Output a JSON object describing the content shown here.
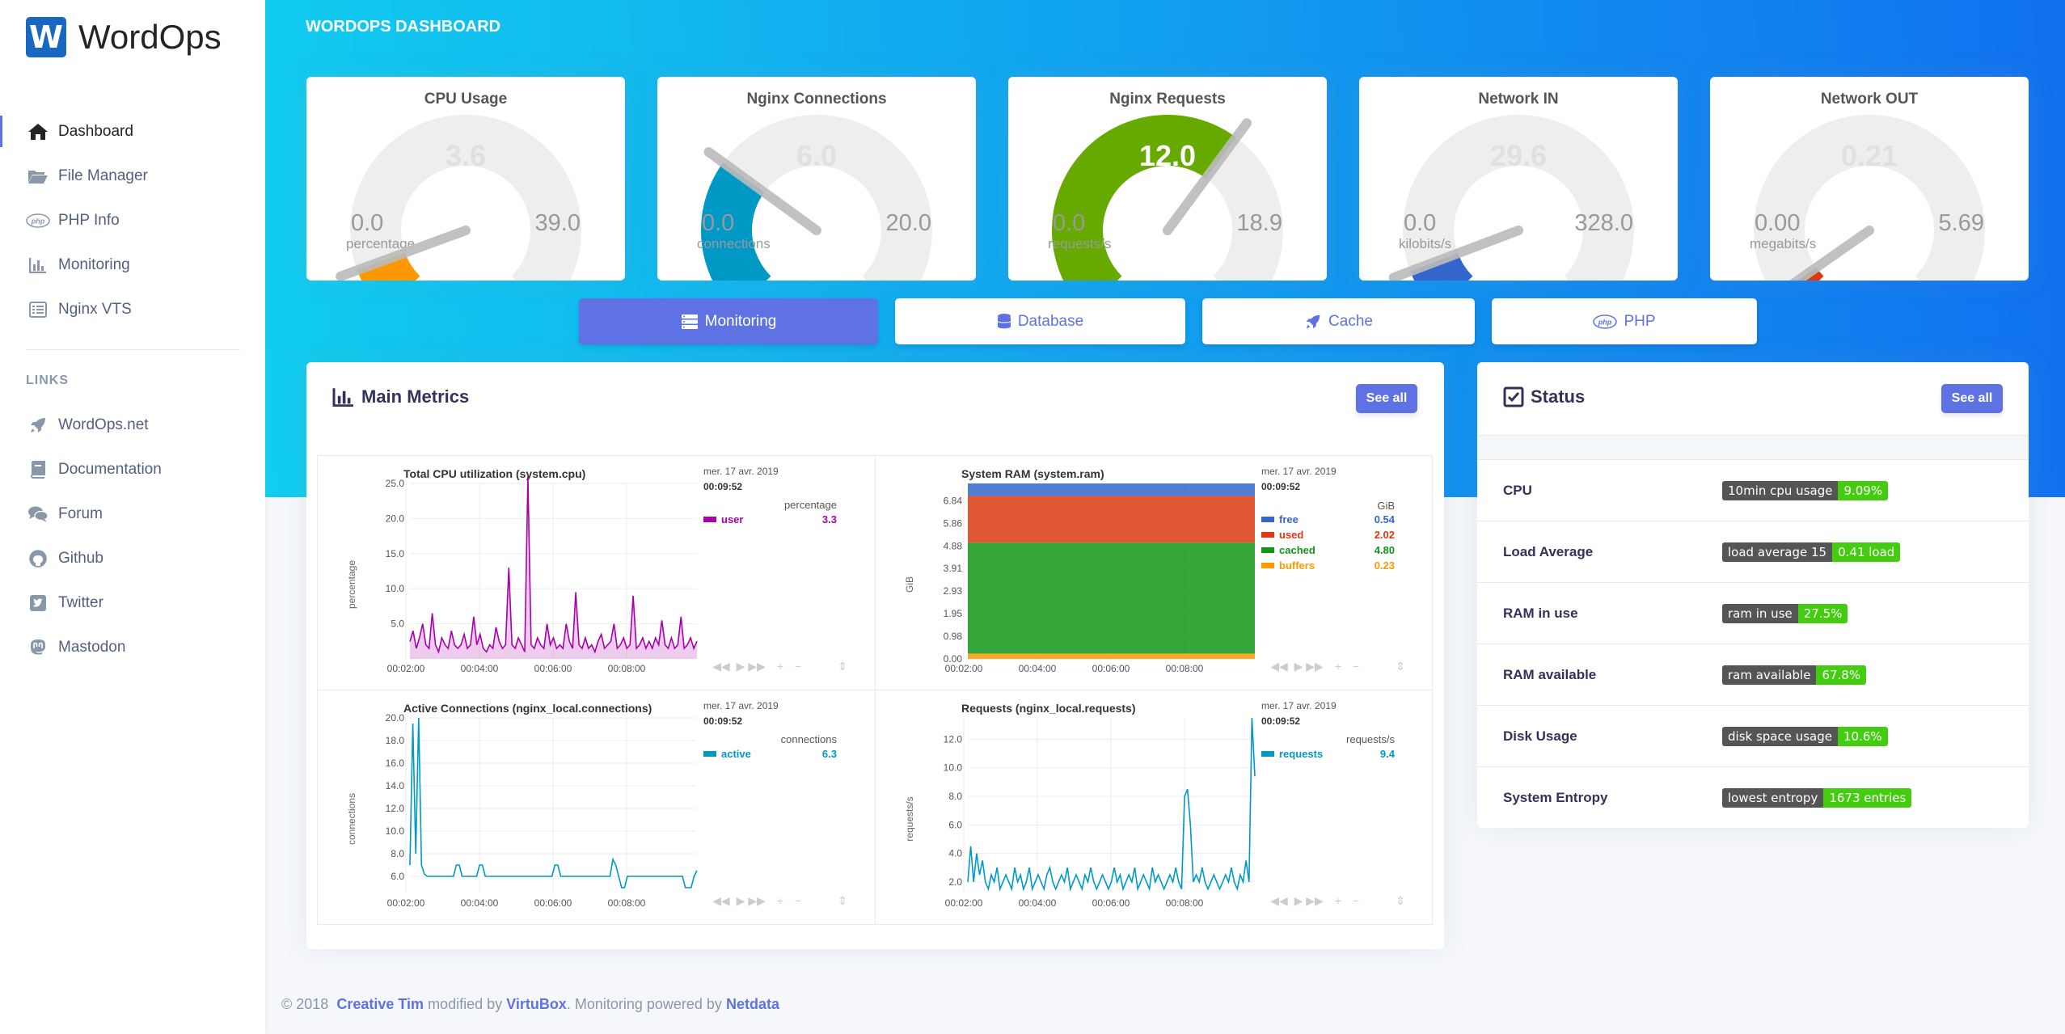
{
  "brand": {
    "logo_letter": "W",
    "name": "WordOps"
  },
  "sidebar": {
    "nav": [
      {
        "label": "Dashboard",
        "icon": "home-icon",
        "active": true
      },
      {
        "label": "File Manager",
        "icon": "folder-open-icon"
      },
      {
        "label": "PHP Info",
        "icon": "php-icon"
      },
      {
        "label": "Monitoring",
        "icon": "chart-bar-icon"
      },
      {
        "label": "Nginx VTS",
        "icon": "list-icon"
      }
    ],
    "links_heading": "LINKS",
    "links": [
      {
        "label": "WordOps.net",
        "icon": "rocket-icon"
      },
      {
        "label": "Documentation",
        "icon": "book-icon"
      },
      {
        "label": "Forum",
        "icon": "comments-icon"
      },
      {
        "label": "Github",
        "icon": "github-icon"
      },
      {
        "label": "Twitter",
        "icon": "twitter-icon"
      },
      {
        "label": "Mastodon",
        "icon": "mastodon-icon"
      }
    ]
  },
  "header": {
    "title": "WORDOPS DASHBOARD"
  },
  "gauges": [
    {
      "title": "CPU Usage",
      "value": "3.6",
      "min": "0.0",
      "max": "39.0",
      "unit": "percentage",
      "fraction": 0.092,
      "color": "#ff9800"
    },
    {
      "title": "Nginx Connections",
      "value": "6.0",
      "min": "0.0",
      "max": "20.0",
      "unit": "connections",
      "fraction": 0.3,
      "color": "#0099c6"
    },
    {
      "title": "Nginx Requests",
      "value": "12.0",
      "min": "0.0",
      "max": "18.9",
      "unit": "requests/s",
      "fraction": 0.635,
      "color": "#66aa00"
    },
    {
      "title": "Network IN",
      "value": "29.6",
      "min": "0.0",
      "max": "328.0",
      "unit": "kilobits/s",
      "fraction": 0.09,
      "color": "#3366cc"
    },
    {
      "title": "Network OUT",
      "value": "0.21",
      "min": "0.00",
      "max": "5.69",
      "unit": "megabits/s",
      "fraction": 0.037,
      "color": "#dc3912"
    }
  ],
  "tabs": [
    {
      "label": "Monitoring",
      "icon": "server-icon",
      "active": true
    },
    {
      "label": "Database",
      "icon": "database-icon"
    },
    {
      "label": "Cache",
      "icon": "rocket-icon"
    },
    {
      "label": "PHP",
      "icon": "php-icon"
    }
  ],
  "main_metrics": {
    "title": "Main Metrics",
    "see_all": "See all"
  },
  "status": {
    "title": "Status",
    "see_all": "See all",
    "rows": [
      {
        "label": "CPU",
        "badge_key": "10min cpu usage",
        "badge_value": "9.09%"
      },
      {
        "label": "Load Average",
        "badge_key": "load average 15",
        "badge_value": "0.41 load"
      },
      {
        "label": "RAM in use",
        "badge_key": "ram in use",
        "badge_value": "27.5%"
      },
      {
        "label": "RAM available",
        "badge_key": "ram available",
        "badge_value": "67.8%"
      },
      {
        "label": "Disk Usage",
        "badge_key": "disk space usage",
        "badge_value": "10.6%"
      },
      {
        "label": "System Entropy",
        "badge_key": "lowest entropy",
        "badge_value": "1673 entries"
      }
    ]
  },
  "footer": {
    "prefix": "© 2018",
    "link1": "Creative Tim",
    "mid": "modified by",
    "link2": "VirtuBox",
    "mid2": ". Monitoring powered by",
    "link3": "Netdata"
  },
  "chart_data": [
    {
      "type": "area",
      "title": "Total CPU utilization (system.cpu)",
      "date": "mer. 17 avr. 2019",
      "time": "00:09:52",
      "unit": "percentage",
      "ylabel": "percentage",
      "yticks": [
        "25.0",
        "20.0",
        "15.0",
        "10.0",
        "5.0"
      ],
      "ylim": [
        0,
        25.0
      ],
      "xticks": [
        "00:02:00",
        "00:04:00",
        "00:06:00",
        "00:08:00"
      ],
      "series": [
        {
          "name": "user",
          "current": "3.3",
          "color": "#aa00aa",
          "values": [
            2.5,
            4,
            1.5,
            3,
            5,
            2,
            1.5,
            6.5,
            2,
            1,
            3,
            2,
            1.5,
            4,
            2,
            1.5,
            2,
            3.5,
            1.5,
            2,
            6,
            2,
            3.5,
            1.5,
            1,
            2,
            1.5,
            4.5,
            2.5,
            1.5,
            2,
            13,
            2,
            1.5,
            3,
            2,
            1,
            26,
            2,
            1.5,
            3,
            2,
            1.5,
            5,
            2,
            3,
            1.5,
            2,
            1.5,
            5,
            2.5,
            1.5,
            9.5,
            2,
            1.5,
            3,
            1.5,
            2,
            1,
            2.5,
            3.5,
            1.5,
            2,
            2.5,
            5,
            1.5,
            2,
            3,
            1.5,
            2,
            9,
            1.5,
            2,
            3,
            1.5,
            2.5,
            1.5,
            3,
            2,
            5.5,
            2,
            1.5,
            3,
            1.5,
            2,
            6,
            1.5,
            2,
            3,
            1.5,
            2.5
          ]
        }
      ]
    },
    {
      "type": "area",
      "title": "System RAM (system.ram)",
      "date": "mer. 17 avr. 2019",
      "time": "00:09:52",
      "unit": "GiB",
      "ylabel": "GiB",
      "yticks": [
        "6.84",
        "5.86",
        "4.88",
        "3.91",
        "2.93",
        "1.95",
        "0.98",
        "0.00"
      ],
      "ylim": [
        0,
        7.59
      ],
      "xticks": [
        "00:02:00",
        "00:04:00",
        "00:06:00",
        "00:08:00"
      ],
      "series": [
        {
          "name": "free",
          "current": "0.54",
          "color": "#3366cc",
          "value": 0.54
        },
        {
          "name": "used",
          "current": "2.02",
          "color": "#dc3912",
          "value": 2.02
        },
        {
          "name": "cached",
          "current": "4.80",
          "color": "#109618",
          "value": 4.8
        },
        {
          "name": "buffers",
          "current": "0.23",
          "color": "#ff9900",
          "value": 0.23
        }
      ]
    },
    {
      "type": "line",
      "title": "Active Connections (nginx_local.connections)",
      "date": "mer. 17 avr. 2019",
      "time": "00:09:52",
      "unit": "connections",
      "ylabel": "connections",
      "yticks": [
        "20.0",
        "18.0",
        "16.0",
        "14.0",
        "12.0",
        "10.0",
        "8.0",
        "6.0"
      ],
      "ylim": [
        4.5,
        20.0
      ],
      "xticks": [
        "00:02:00",
        "00:04:00",
        "00:06:00",
        "00:08:00"
      ],
      "series": [
        {
          "name": "active",
          "current": "6.3",
          "color": "#0099c6",
          "values": [
            7,
            19.5,
            8,
            20,
            7,
            6.2,
            6,
            6,
            6,
            6,
            6,
            6,
            6,
            6,
            6,
            6,
            7,
            7,
            6,
            6,
            6,
            6,
            6,
            6,
            7,
            7,
            6,
            6,
            6,
            6,
            6,
            6,
            6,
            6,
            6,
            6,
            6,
            6,
            6,
            6,
            6,
            6,
            6,
            6,
            6,
            6,
            6,
            6,
            6,
            6,
            7,
            7,
            6,
            6,
            6,
            6,
            6,
            6,
            6,
            6,
            6,
            6,
            6,
            6,
            6,
            6,
            6,
            6,
            6,
            6,
            7.5,
            7,
            6,
            5,
            5,
            6,
            6,
            6,
            6,
            6,
            6,
            6,
            6,
            6,
            6,
            6,
            6,
            6,
            6,
            6,
            6,
            6,
            6,
            6,
            6,
            5,
            5,
            5,
            6,
            6.5
          ]
        }
      ]
    },
    {
      "type": "line",
      "title": "Requests (nginx_local.requests)",
      "date": "mer. 17 avr. 2019",
      "time": "00:09:52",
      "unit": "requests/s",
      "ylabel": "requests/s",
      "yticks": [
        "12.0",
        "10.0",
        "8.0",
        "6.0",
        "4.0",
        "2.0"
      ],
      "ylim": [
        1.2,
        13.5
      ],
      "xticks": [
        "00:02:00",
        "00:04:00",
        "00:06:00",
        "00:08:00"
      ],
      "series": [
        {
          "name": "requests",
          "current": "9.4",
          "color": "#0099c6",
          "values": [
            2,
            4.5,
            2,
            4,
            2.5,
            3.5,
            2,
            1.5,
            2.5,
            2,
            3,
            1.5,
            2,
            2.5,
            2,
            1.5,
            3,
            2,
            2.5,
            1.5,
            2,
            3,
            1.5,
            2,
            2.5,
            2,
            1.5,
            2.5,
            3,
            2,
            1.5,
            2,
            2.5,
            2,
            3,
            1.5,
            2,
            2.5,
            2,
            1.5,
            2.5,
            2,
            3,
            2,
            1.5,
            2,
            2.5,
            2,
            1.5,
            2,
            3,
            2,
            2.5,
            1.5,
            2,
            2.5,
            2,
            3,
            1.5,
            2,
            2.5,
            2,
            1.5,
            3,
            2,
            2.5,
            2,
            1.5,
            2,
            2.5,
            2,
            3,
            2,
            1.5,
            8,
            8.5,
            6,
            2,
            2.5,
            2,
            3,
            2,
            1.5,
            2,
            2.5,
            2,
            1.5,
            2,
            2.5,
            2,
            3,
            2,
            1.5,
            2.5,
            2,
            3.5,
            2,
            13.5,
            9.4
          ]
        }
      ]
    }
  ]
}
